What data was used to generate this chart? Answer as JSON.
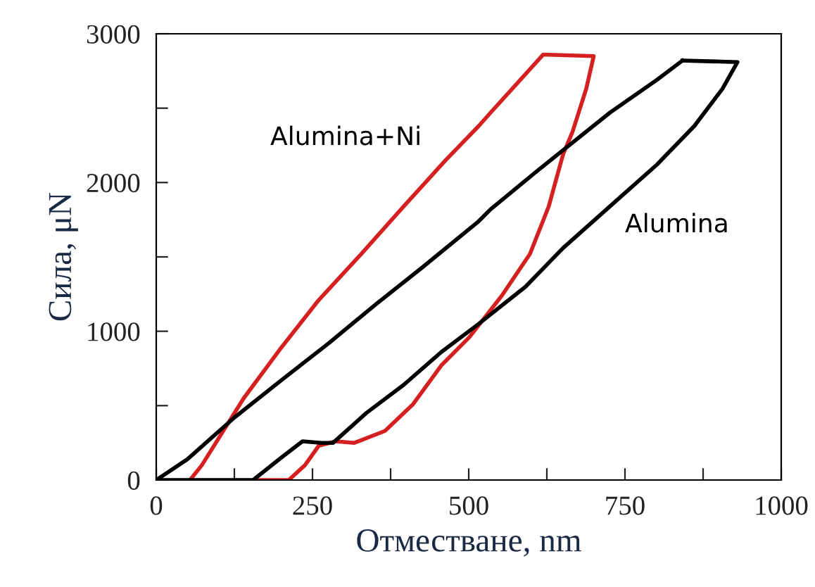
{
  "chart_data": {
    "type": "line",
    "xlabel": "Отместване, nm",
    "ylabel": "Сила, μN",
    "series": [
      {
        "color": "#d42020",
        "x": [
          54,
          73,
          140,
          200,
          260,
          328,
          396,
          463,
          516,
          535,
          576,
          619,
          700,
          688,
          666,
          651,
          628,
          598,
          553,
          501,
          456,
          411,
          366,
          317,
          287,
          260,
          238,
          212,
          159
        ],
        "values": [
          0,
          100,
          550,
          890,
          1210,
          1520,
          1840,
          2150,
          2380,
          2470,
          2660,
          2860,
          2850,
          2630,
          2340,
          2190,
          1840,
          1520,
          1240,
          960,
          770,
          510,
          330,
          250,
          260,
          230,
          100,
          0,
          0
        ]
      },
      {
        "color": "#000000",
        "x": [
          0,
          50,
          125,
          200,
          276,
          351,
          426,
          516,
          535,
          613,
          726,
          801,
          842
        ],
        "values": [
          0,
          140,
          420,
          670,
          920,
          1180,
          1430,
          1740,
          1820,
          2090,
          2470,
          2690,
          2820
        ]
      },
      {
        "color": "#000000",
        "x": [
          842,
          930,
          906,
          861,
          801,
          726,
          651,
          591,
          516,
          456,
          396,
          336,
          283,
          264,
          234,
          200,
          155,
          0
        ],
        "values": [
          2820,
          2810,
          2630,
          2380,
          2120,
          1840,
          1560,
          1300,
          1050,
          860,
          640,
          450,
          250,
          250,
          260,
          150,
          0,
          0
        ]
      }
    ],
    "annotations": [
      "Alumina+Ni",
      "Alumina"
    ],
    "xlim": [
      0,
      1000
    ],
    "ylim": [
      0,
      3000
    ],
    "xticks": [
      0,
      {
        "value": 125,
        "label": null
      },
      250,
      {
        "value": 375,
        "label": null
      },
      500,
      {
        "value": 625,
        "label": null
      },
      750,
      {
        "value": 875,
        "label": null
      },
      1000
    ],
    "yticks": [
      0,
      {
        "value": 500,
        "label": null
      },
      1000,
      {
        "value": 1500,
        "label": null
      },
      2000,
      {
        "value": 2500,
        "label": null
      },
      3000
    ],
    "grid": false,
    "legend": false,
    "marker": "none",
    "line_style": "solid"
  }
}
